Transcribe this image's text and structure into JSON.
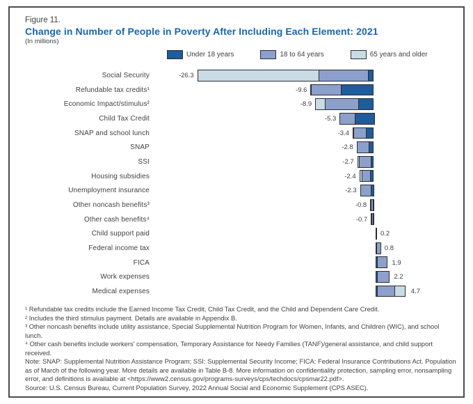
{
  "figure": {
    "label": "Figure 11.",
    "title": "Change in Number of People in Poverty After Including Each Element: 2021",
    "subtitle": "(In millions)"
  },
  "legend": [
    {
      "label": "Under 18 years",
      "color": "#1e5c9b"
    },
    {
      "label": "18 to 64 years",
      "color": "#8da0cc"
    },
    {
      "label": "65 years and older",
      "color": "#c9dbe5"
    }
  ],
  "colors": {
    "title_blue": "#1767b0",
    "text_gray": "#414042",
    "bar_outline": "#2b2d33",
    "frame_border": "#4b4b4d"
  },
  "chart_data": {
    "type": "bar",
    "orientation": "horizontal",
    "stacked": true,
    "unit": "millions of people",
    "xlim": [
      -27,
      5
    ],
    "grid": false,
    "legend_position": "top",
    "categories": [
      "Social Security",
      "Refundable tax credits¹",
      "Economic Impact/stimulus²",
      "Child Tax Credit",
      "SNAP and school lunch",
      "SNAP",
      "SSI",
      "Housing subsidies",
      "Unemployment insurance",
      "Other noncash benefits³",
      "Other cash benefits⁴",
      "Child support paid",
      "Federal income tax",
      "FICA",
      "Work expenses",
      "Medical expenses"
    ],
    "totals": [
      -26.3,
      -9.6,
      -8.9,
      -5.3,
      -3.4,
      -2.8,
      -2.7,
      -2.4,
      -2.3,
      -0.8,
      -0.7,
      0.2,
      0.8,
      1.9,
      2.2,
      4.7
    ],
    "value_labels": [
      "-26.3",
      "-9.6",
      "-8.9",
      "-5.3",
      "-3.4",
      "-2.8",
      "-2.7",
      "-2.4",
      "-2.3",
      "-0.8",
      "-0.7",
      "0.2",
      "0.8",
      "1.9",
      "2.2",
      "4.7"
    ],
    "series": [
      {
        "name": "Under 18 years",
        "color": "#1e5c9b",
        "values": [
          -0.9,
          -4.9,
          -2.3,
          -2.9,
          -1.2,
          -0.8,
          -0.4,
          -0.6,
          -0.6,
          -0.2,
          -0.2,
          0.0,
          0.1,
          0.3,
          0.3,
          0.3
        ]
      },
      {
        "name": "18 to 64 years",
        "color": "#8da0cc",
        "values": [
          -7.4,
          -4.5,
          -5.0,
          -2.4,
          -2.0,
          -1.8,
          -1.9,
          -1.3,
          -1.6,
          -0.5,
          -0.4,
          0.2,
          0.7,
          1.6,
          1.9,
          2.7
        ]
      },
      {
        "name": "65 years and older",
        "color": "#c9dbe5",
        "values": [
          -18.0,
          -0.2,
          -1.6,
          0.0,
          -0.2,
          -0.2,
          -0.4,
          -0.5,
          -0.1,
          -0.1,
          -0.1,
          0.0,
          0.0,
          0.0,
          0.0,
          1.7
        ]
      }
    ]
  },
  "footnotes": [
    "¹ Refundable tax credits include the Earned Income Tax Credit, Child Tax Credit, and the Child and Dependent Care Credit.",
    "² Includes the third stimulus payment. Details are available in Appendix B.",
    "³ Other noncash benefits include utility assistance, Special Supplemental Nutrition Program for Women, Infants, and Children (WIC), and school lunch.",
    "⁴ Other cash benefits include workers' compensation, Temporary Assistance for Needy Families (TANF)/general assistance, and child support received."
  ],
  "note": "Note: SNAP: Supplemental Nutrition Assistance Program; SSI: Supplemental Security Income; FICA: Federal Insurance Contributions Act. Population as of March of the following year. More details are available in Table B-8. More information on confidentiality protection, sampling error, nonsampling error, and definitions is available at <https://www2.census.gov/programs-surveys/cps/techdocs/cpsmar22.pdf>.",
  "source": "Source: U.S. Census Bureau, Current Population Survey, 2022 Annual Social and Economic Supplement (CPS ASEC)."
}
